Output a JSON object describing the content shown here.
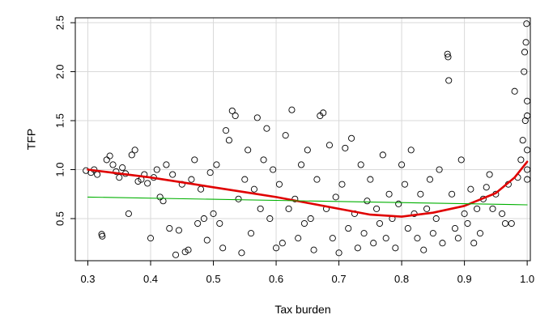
{
  "chart_data": {
    "type": "scatter",
    "title": "",
    "xlabel": "Tax burden",
    "ylabel": "TFP",
    "xlim": [
      0.28,
      1.005
    ],
    "ylim": [
      0.07,
      2.55
    ],
    "x_ticks": [
      0.3,
      0.4,
      0.5,
      0.6,
      0.7,
      0.8,
      0.9,
      1.0
    ],
    "x_tick_labels": [
      "0.3",
      "0.4",
      "0.5",
      "0.6",
      "0.7",
      "0.8",
      "0.9",
      "1.0"
    ],
    "y_ticks": [
      0.5,
      1.0,
      1.5,
      2.0,
      2.5
    ],
    "y_tick_labels": [
      "0.5",
      "1.0",
      "1.5",
      "2.0",
      "2.5"
    ],
    "grid": true,
    "marker": "open-circle",
    "marker_color": "#000000",
    "grid_color": "#d9d9d9",
    "series": [
      {
        "kind": "points",
        "points": [
          [
            0.297,
            0.99
          ],
          [
            0.305,
            0.97
          ],
          [
            0.31,
            1.0
          ],
          [
            0.315,
            0.95
          ],
          [
            0.322,
            0.34
          ],
          [
            0.323,
            0.32
          ],
          [
            0.33,
            1.1
          ],
          [
            0.335,
            1.14
          ],
          [
            0.34,
            1.05
          ],
          [
            0.345,
            0.98
          ],
          [
            0.35,
            0.92
          ],
          [
            0.355,
            1.02
          ],
          [
            0.36,
            0.96
          ],
          [
            0.365,
            0.55
          ],
          [
            0.37,
            1.15
          ],
          [
            0.375,
            1.2
          ],
          [
            0.38,
            0.88
          ],
          [
            0.385,
            0.9
          ],
          [
            0.39,
            0.95
          ],
          [
            0.395,
            0.86
          ],
          [
            0.4,
            0.3
          ],
          [
            0.405,
            0.92
          ],
          [
            0.41,
            1.0
          ],
          [
            0.415,
            0.72
          ],
          [
            0.42,
            0.68
          ],
          [
            0.425,
            1.05
          ],
          [
            0.43,
            0.4
          ],
          [
            0.435,
            0.95
          ],
          [
            0.44,
            0.13
          ],
          [
            0.445,
            0.38
          ],
          [
            0.45,
            0.85
          ],
          [
            0.455,
            0.16
          ],
          [
            0.46,
            0.18
          ],
          [
            0.465,
            0.9
          ],
          [
            0.47,
            1.1
          ],
          [
            0.475,
            0.45
          ],
          [
            0.48,
            0.8
          ],
          [
            0.485,
            0.5
          ],
          [
            0.49,
            0.28
          ],
          [
            0.495,
            0.97
          ],
          [
            0.5,
            0.55
          ],
          [
            0.505,
            1.05
          ],
          [
            0.51,
            0.45
          ],
          [
            0.515,
            0.2
          ],
          [
            0.52,
            1.4
          ],
          [
            0.525,
            1.3
          ],
          [
            0.53,
            1.6
          ],
          [
            0.535,
            1.55
          ],
          [
            0.54,
            0.7
          ],
          [
            0.545,
            0.15
          ],
          [
            0.55,
            0.9
          ],
          [
            0.555,
            1.2
          ],
          [
            0.56,
            0.35
          ],
          [
            0.565,
            0.8
          ],
          [
            0.57,
            1.53
          ],
          [
            0.575,
            0.6
          ],
          [
            0.58,
            1.1
          ],
          [
            0.585,
            1.42
          ],
          [
            0.59,
            0.5
          ],
          [
            0.595,
            1.0
          ],
          [
            0.6,
            0.2
          ],
          [
            0.605,
            0.85
          ],
          [
            0.61,
            0.25
          ],
          [
            0.615,
            1.35
          ],
          [
            0.62,
            0.6
          ],
          [
            0.625,
            1.61
          ],
          [
            0.63,
            0.7
          ],
          [
            0.635,
            0.3
          ],
          [
            0.64,
            1.05
          ],
          [
            0.645,
            0.45
          ],
          [
            0.65,
            1.2
          ],
          [
            0.655,
            0.5
          ],
          [
            0.66,
            0.18
          ],
          [
            0.665,
            0.9
          ],
          [
            0.67,
            1.55
          ],
          [
            0.675,
            1.58
          ],
          [
            0.68,
            0.6
          ],
          [
            0.685,
            1.25
          ],
          [
            0.69,
            0.3
          ],
          [
            0.695,
            0.72
          ],
          [
            0.7,
            0.15
          ],
          [
            0.705,
            0.85
          ],
          [
            0.71,
            1.22
          ],
          [
            0.715,
            0.4
          ],
          [
            0.72,
            1.32
          ],
          [
            0.725,
            0.55
          ],
          [
            0.73,
            0.2
          ],
          [
            0.735,
            1.05
          ],
          [
            0.74,
            0.35
          ],
          [
            0.745,
            0.68
          ],
          [
            0.75,
            0.9
          ],
          [
            0.755,
            0.25
          ],
          [
            0.76,
            0.6
          ],
          [
            0.765,
            0.45
          ],
          [
            0.77,
            1.15
          ],
          [
            0.775,
            0.3
          ],
          [
            0.78,
            0.75
          ],
          [
            0.785,
            0.5
          ],
          [
            0.79,
            0.2
          ],
          [
            0.795,
            0.65
          ],
          [
            0.8,
            1.05
          ],
          [
            0.805,
            0.85
          ],
          [
            0.81,
            0.4
          ],
          [
            0.815,
            1.2
          ],
          [
            0.82,
            0.55
          ],
          [
            0.825,
            0.3
          ],
          [
            0.83,
            0.75
          ],
          [
            0.835,
            0.18
          ],
          [
            0.84,
            0.6
          ],
          [
            0.845,
            0.9
          ],
          [
            0.85,
            0.35
          ],
          [
            0.855,
            0.5
          ],
          [
            0.86,
            1.0
          ],
          [
            0.865,
            0.25
          ],
          [
            0.873,
            2.18
          ],
          [
            0.874,
            2.15
          ],
          [
            0.875,
            1.91
          ],
          [
            0.88,
            0.75
          ],
          [
            0.885,
            0.4
          ],
          [
            0.89,
            0.3
          ],
          [
            0.895,
            1.1
          ],
          [
            0.9,
            0.55
          ],
          [
            0.905,
            0.45
          ],
          [
            0.91,
            0.8
          ],
          [
            0.915,
            0.25
          ],
          [
            0.92,
            0.6
          ],
          [
            0.925,
            0.35
          ],
          [
            0.93,
            0.7
          ],
          [
            0.935,
            0.82
          ],
          [
            0.94,
            0.95
          ],
          [
            0.945,
            0.6
          ],
          [
            0.95,
            0.75
          ],
          [
            0.96,
            0.55
          ],
          [
            0.965,
            0.45
          ],
          [
            0.97,
            0.85
          ],
          [
            0.975,
            0.45
          ],
          [
            0.98,
            1.8
          ],
          [
            0.985,
            0.92
          ],
          [
            0.99,
            1.1
          ],
          [
            0.993,
            1.3
          ],
          [
            0.995,
            2.0
          ],
          [
            0.996,
            2.2
          ],
          [
            0.997,
            1.5
          ],
          [
            0.998,
            2.3
          ],
          [
            0.999,
            2.49
          ],
          [
            1.0,
            1.7
          ],
          [
            1.0,
            1.2
          ],
          [
            1.0,
            1.0
          ],
          [
            1.0,
            0.9
          ],
          [
            1.0,
            1.55
          ]
        ]
      },
      {
        "kind": "line",
        "color": "#e00000",
        "stroke": "thick",
        "points": [
          [
            0.3,
            1.0
          ],
          [
            0.35,
            0.96
          ],
          [
            0.4,
            0.92
          ],
          [
            0.45,
            0.87
          ],
          [
            0.5,
            0.82
          ],
          [
            0.55,
            0.77
          ],
          [
            0.6,
            0.72
          ],
          [
            0.65,
            0.66
          ],
          [
            0.7,
            0.6
          ],
          [
            0.75,
            0.54
          ],
          [
            0.8,
            0.52
          ],
          [
            0.85,
            0.56
          ],
          [
            0.9,
            0.63
          ],
          [
            0.95,
            0.76
          ],
          [
            0.98,
            0.92
          ],
          [
            1.0,
            1.08
          ]
        ]
      },
      {
        "kind": "line",
        "color": "#00b000",
        "stroke": "thin",
        "points": [
          [
            0.3,
            0.72
          ],
          [
            1.0,
            0.64
          ]
        ]
      }
    ]
  }
}
